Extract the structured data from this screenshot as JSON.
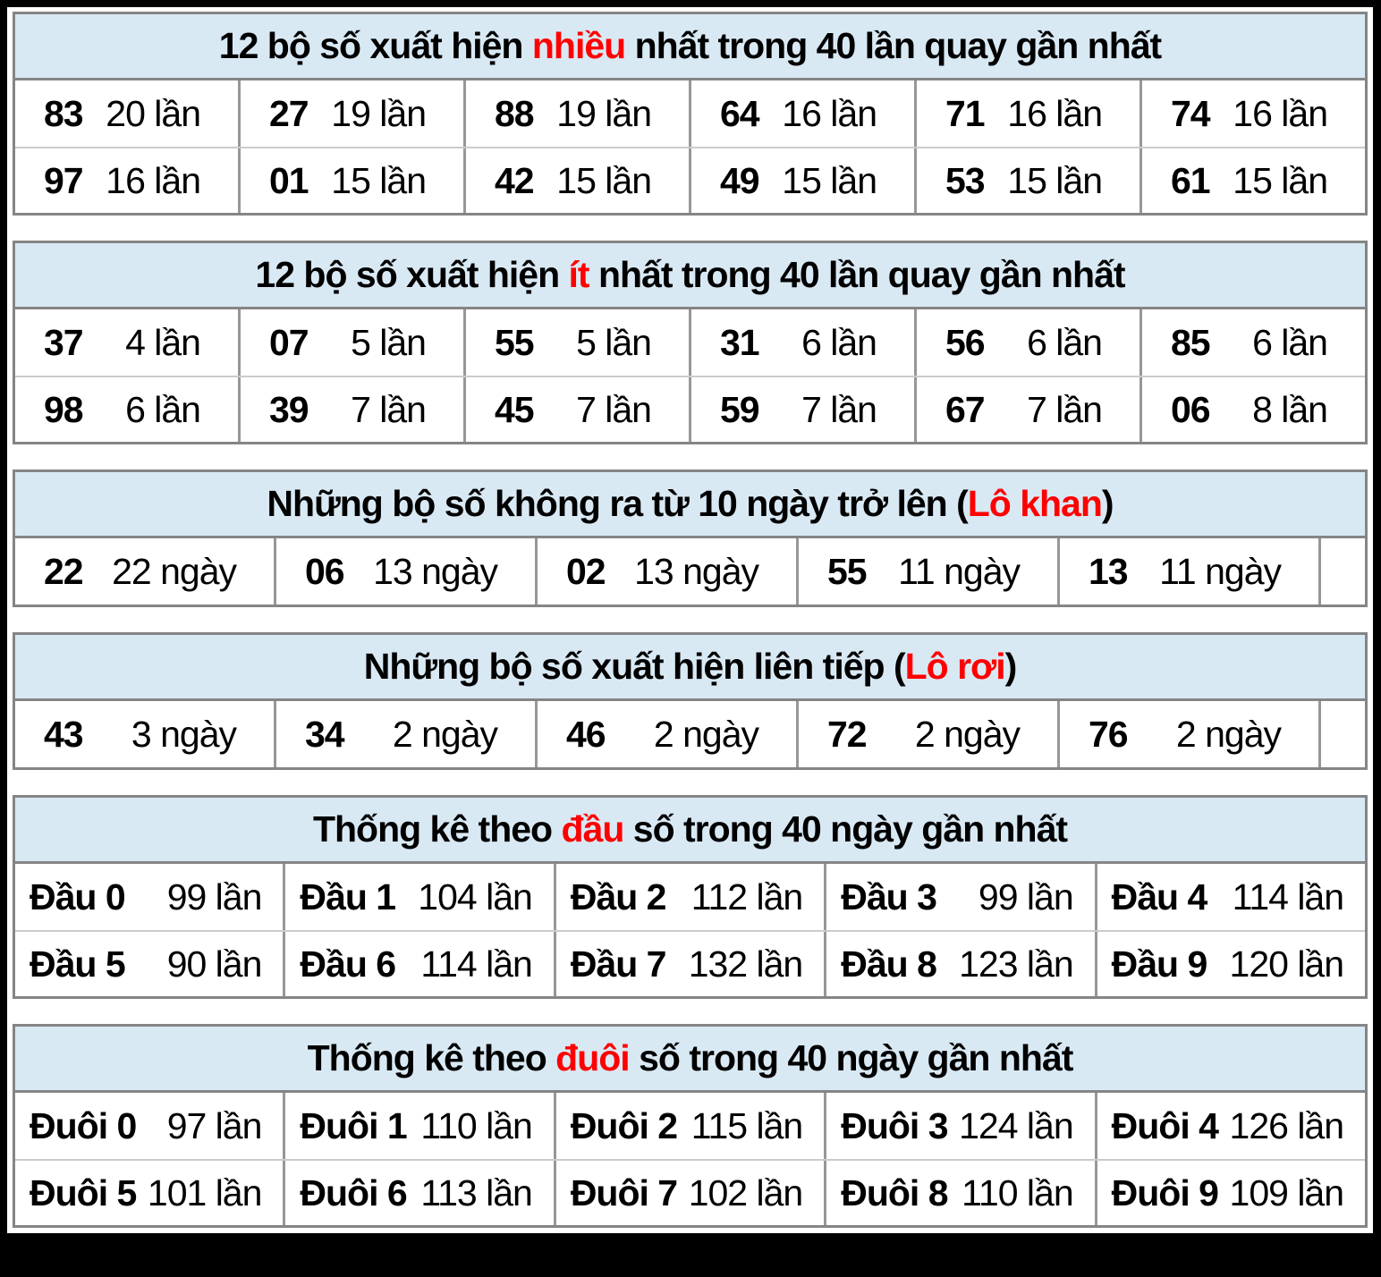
{
  "colors": {
    "page_background": "#000000",
    "content_background": "#ffffff",
    "header_background": "#d9e9f4",
    "accent_red": "#ff0000",
    "border_dark": "#858585",
    "border_cell": "#979797",
    "border_row": "#cbcbcb",
    "text": "#000000"
  },
  "sections": [
    {
      "name": "most-frequent",
      "title": [
        {
          "t": "12 bộ số xuất hiện "
        },
        {
          "t": "nhiều",
          "red": true
        },
        {
          "t": " nhất trong 40 lần quay gần nhất"
        }
      ],
      "layout": {
        "columns": 6,
        "trailing_empty": false,
        "tight": false
      },
      "rows": [
        [
          [
            "83",
            "20 lần"
          ],
          [
            "27",
            "19 lần"
          ],
          [
            "88",
            "19 lần"
          ],
          [
            "64",
            "16 lần"
          ],
          [
            "71",
            "16 lần"
          ],
          [
            "74",
            "16 lần"
          ]
        ],
        [
          [
            "97",
            "16 lần"
          ],
          [
            "01",
            "15 lần"
          ],
          [
            "42",
            "15 lần"
          ],
          [
            "49",
            "15 lần"
          ],
          [
            "53",
            "15 lần"
          ],
          [
            "61",
            "15 lần"
          ]
        ]
      ]
    },
    {
      "name": "least-frequent",
      "title": [
        {
          "t": "12 bộ số xuất hiện "
        },
        {
          "t": "ít",
          "red": true
        },
        {
          "t": " nhất trong 40 lần quay gần nhất"
        }
      ],
      "layout": {
        "columns": 6,
        "trailing_empty": false,
        "tight": false
      },
      "rows": [
        [
          [
            "37",
            "4 lần"
          ],
          [
            "07",
            "5 lần"
          ],
          [
            "55",
            "5 lần"
          ],
          [
            "31",
            "6 lần"
          ],
          [
            "56",
            "6 lần"
          ],
          [
            "85",
            "6 lần"
          ]
        ],
        [
          [
            "98",
            "6 lần"
          ],
          [
            "39",
            "7 lần"
          ],
          [
            "45",
            "7 lần"
          ],
          [
            "59",
            "7 lần"
          ],
          [
            "67",
            "7 lần"
          ],
          [
            "06",
            "8 lần"
          ]
        ]
      ]
    },
    {
      "name": "lo-khan",
      "title": [
        {
          "t": "Những bộ số không ra từ 10 ngày trở lên ("
        },
        {
          "t": "Lô khan",
          "red": true
        },
        {
          "t": ")"
        }
      ],
      "layout": {
        "columns": 5,
        "trailing_empty": true,
        "tight": false
      },
      "rows": [
        [
          [
            "22",
            "22 ngày"
          ],
          [
            "06",
            "13 ngày"
          ],
          [
            "02",
            "13 ngày"
          ],
          [
            "55",
            "11 ngày"
          ],
          [
            "13",
            "11 ngày"
          ]
        ]
      ]
    },
    {
      "name": "lo-roi",
      "title": [
        {
          "t": "Những bộ số xuất hiện liên tiếp ("
        },
        {
          "t": "Lô rơi",
          "red": true
        },
        {
          "t": ")"
        }
      ],
      "layout": {
        "columns": 5,
        "trailing_empty": true,
        "tight": false
      },
      "rows": [
        [
          [
            "43",
            "3 ngày"
          ],
          [
            "34",
            "2 ngày"
          ],
          [
            "46",
            "2 ngày"
          ],
          [
            "72",
            "2 ngày"
          ],
          [
            "76",
            "2 ngày"
          ]
        ]
      ]
    },
    {
      "name": "dau-stats",
      "title": [
        {
          "t": "Thống kê theo "
        },
        {
          "t": "đầu",
          "red": true
        },
        {
          "t": " số trong 40 ngày gần nhất"
        }
      ],
      "layout": {
        "columns": 5,
        "trailing_empty": false,
        "tight": true
      },
      "rows": [
        [
          [
            "Đầu 0",
            "99 lần"
          ],
          [
            "Đầu 1",
            "104 lần"
          ],
          [
            "Đầu 2",
            "112 lần"
          ],
          [
            "Đầu 3",
            "99 lần"
          ],
          [
            "Đầu 4",
            "114 lần"
          ]
        ],
        [
          [
            "Đầu 5",
            "90 lần"
          ],
          [
            "Đầu 6",
            "114 lần"
          ],
          [
            "Đầu 7",
            "132 lần"
          ],
          [
            "Đầu 8",
            "123 lần"
          ],
          [
            "Đầu 9",
            "120 lần"
          ]
        ]
      ]
    },
    {
      "name": "duoi-stats",
      "title": [
        {
          "t": "Thống kê theo "
        },
        {
          "t": "đuôi",
          "red": true
        },
        {
          "t": " số trong 40 ngày gần nhất"
        }
      ],
      "layout": {
        "columns": 5,
        "trailing_empty": false,
        "tight": true
      },
      "rows": [
        [
          [
            "Đuôi 0",
            "97 lần"
          ],
          [
            "Đuôi 1",
            "110 lần"
          ],
          [
            "Đuôi 2",
            "115 lần"
          ],
          [
            "Đuôi 3",
            "124 lần"
          ],
          [
            "Đuôi 4",
            "126 lần"
          ]
        ],
        [
          [
            "Đuôi 5",
            "101 lần"
          ],
          [
            "Đuôi 6",
            "113 lần"
          ],
          [
            "Đuôi 7",
            "102 lần"
          ],
          [
            "Đuôi 8",
            "110 lần"
          ],
          [
            "Đuôi 9",
            "109 lần"
          ]
        ]
      ]
    }
  ]
}
